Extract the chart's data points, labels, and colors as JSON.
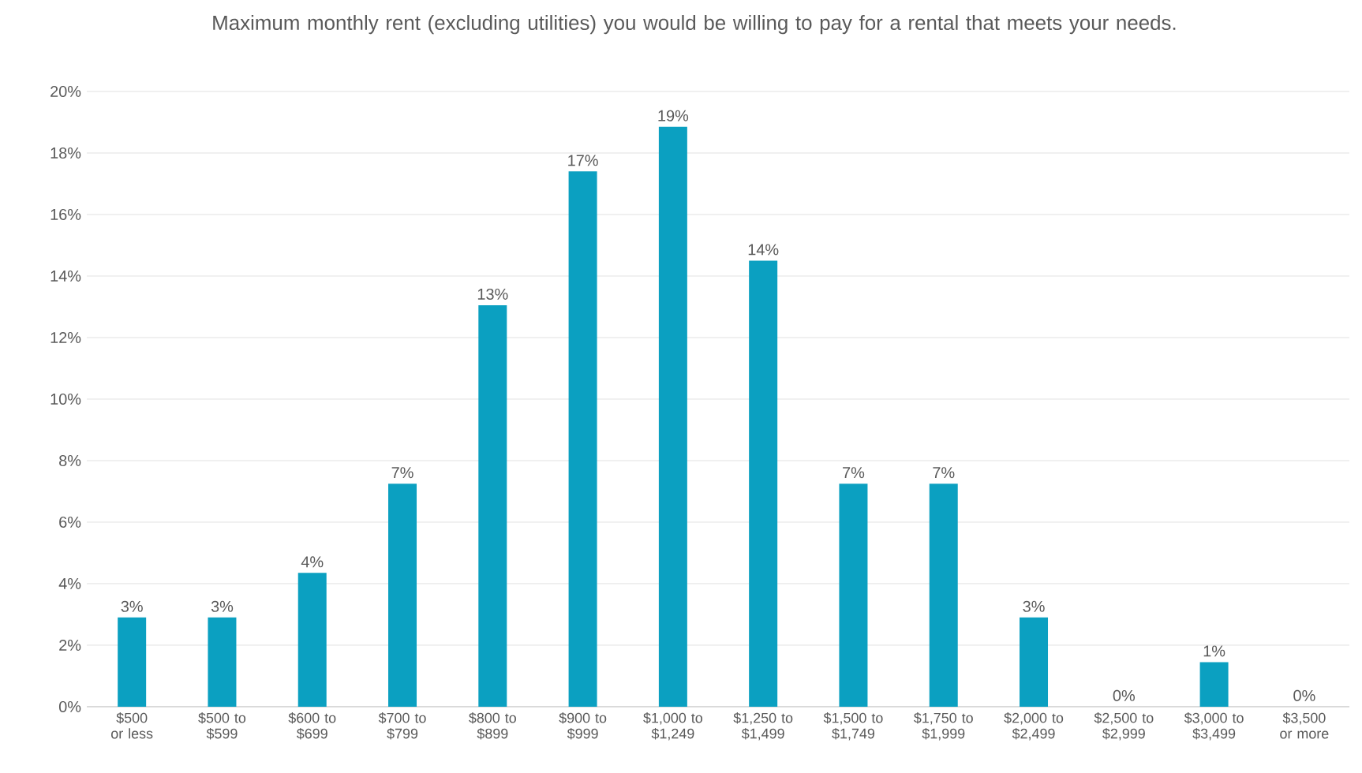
{
  "chart_data": {
    "type": "bar",
    "title": "Maximum monthly rent (excluding utilities) you would be willing to pay for a rental that meets your needs.",
    "categories": [
      "$500 or less",
      "$500 to $599",
      "$600 to $699",
      "$700 to $799",
      "$800 to $899",
      "$900 to $999",
      "$1,000 to $1,249",
      "$1,250 to $1,499",
      "$1,500 to $1,749",
      "$1,750 to $1,999",
      "$2,000 to $2,499",
      "$2,500 to $2,999",
      "$3,000 to $3,499",
      "$3,500 or more"
    ],
    "values": [
      2.9,
      2.9,
      4.35,
      7.25,
      13.05,
      17.4,
      18.85,
      14.5,
      7.25,
      7.25,
      2.9,
      0,
      1.45,
      0
    ],
    "value_labels": [
      "3%",
      "3%",
      "4%",
      "7%",
      "13%",
      "17%",
      "19%",
      "14%",
      "7%",
      "7%",
      "3%",
      "0%",
      "1%",
      "0%"
    ],
    "color": "#0ba0c1",
    "ylim": [
      0,
      20
    ],
    "yticks": [
      {
        "value": 0,
        "label": "0%"
      },
      {
        "value": 2,
        "label": "2%"
      },
      {
        "value": 4,
        "label": "4%"
      },
      {
        "value": 6,
        "label": "6%"
      },
      {
        "value": 8,
        "label": "8%"
      },
      {
        "value": 10,
        "label": "10%"
      },
      {
        "value": 12,
        "label": "12%"
      },
      {
        "value": 14,
        "label": "14%"
      },
      {
        "value": 16,
        "label": "16%"
      },
      {
        "value": 18,
        "label": "18%"
      },
      {
        "value": 20,
        "label": "20%"
      }
    ],
    "grid": "y"
  }
}
